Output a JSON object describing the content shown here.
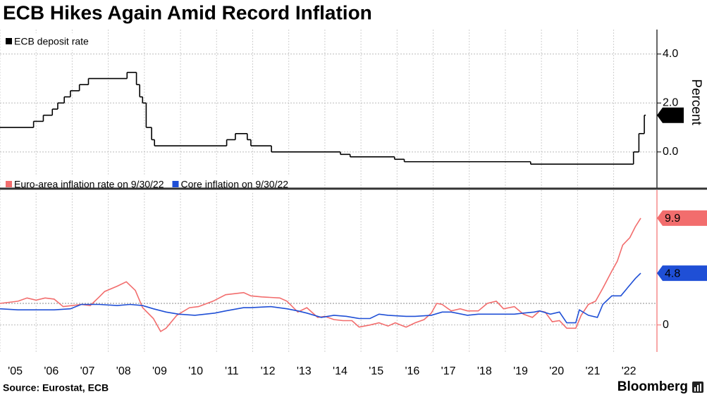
{
  "title": "ECB Hikes Again Amid Record Inflation",
  "source": "Source: Eurostat, ECB",
  "brand": "Bloomberg",
  "chart_data": [
    {
      "type": "line",
      "step": true,
      "y_label": "Percent",
      "xlim": [
        2005,
        2023.2
      ],
      "ylim": [
        -1.5,
        5
      ],
      "yticks": [
        {
          "value": 4,
          "label": "4.0"
        },
        {
          "value": 2,
          "label": "2.0"
        },
        {
          "value": 0,
          "label": "0.0"
        }
      ],
      "grid": true,
      "legend": "top-left",
      "series": [
        {
          "name": "ECB deposit rate",
          "color": "#000000",
          "x": [
            2005.0,
            2005.93,
            2006.2,
            2006.45,
            2006.6,
            2006.78,
            2006.95,
            2007.2,
            2007.45,
            2008.52,
            2008.78,
            2008.87,
            2008.95,
            2009.05,
            2009.2,
            2009.28,
            2011.28,
            2011.52,
            2011.85,
            2011.95,
            2012.52,
            2014.43,
            2014.7,
            2015.93,
            2016.2,
            2019.7,
            2022.55,
            2022.7,
            2022.85
          ],
          "values": [
            1.0,
            1.25,
            1.5,
            1.75,
            2.0,
            2.25,
            2.5,
            2.75,
            3.0,
            3.25,
            2.75,
            2.25,
            2.0,
            1.0,
            0.5,
            0.25,
            0.5,
            0.75,
            0.5,
            0.25,
            0.0,
            -0.1,
            -0.2,
            -0.3,
            -0.4,
            -0.5,
            0.0,
            0.75,
            1.5
          ]
        }
      ]
    },
    {
      "type": "line",
      "xlim": [
        2005,
        2023.2
      ],
      "ylim": [
        -2.5,
        12.5
      ],
      "yticks": [
        0
      ],
      "reference_line": 2,
      "grid": true,
      "legend": "top-left",
      "xticks": [
        {
          "value": 2005,
          "label": "'05"
        },
        {
          "value": 2006,
          "label": "'06"
        },
        {
          "value": 2007,
          "label": "'07"
        },
        {
          "value": 2008,
          "label": "'08"
        },
        {
          "value": 2009,
          "label": "'09"
        },
        {
          "value": 2010,
          "label": "'10"
        },
        {
          "value": 2011,
          "label": "'11"
        },
        {
          "value": 2012,
          "label": "'12"
        },
        {
          "value": 2013,
          "label": "'13"
        },
        {
          "value": 2014,
          "label": "'14"
        },
        {
          "value": 2015,
          "label": "'15"
        },
        {
          "value": 2016,
          "label": "'16"
        },
        {
          "value": 2017,
          "label": "'17"
        },
        {
          "value": 2018,
          "label": "'18"
        },
        {
          "value": 2019,
          "label": "'19"
        },
        {
          "value": 2020,
          "label": "'20"
        },
        {
          "value": 2021,
          "label": "'21"
        },
        {
          "value": 2022,
          "label": "'22"
        }
      ],
      "series": [
        {
          "name": "Euro-area inflation rate on 9/30/22",
          "color": "#f26d6d",
          "x": [
            2005.0,
            2005.25,
            2005.5,
            2005.75,
            2006.0,
            2006.25,
            2006.5,
            2006.75,
            2007.0,
            2007.25,
            2007.5,
            2007.75,
            2007.9,
            2008.25,
            2008.5,
            2008.75,
            2008.95,
            2009.25,
            2009.45,
            2009.6,
            2009.9,
            2010.25,
            2010.5,
            2010.9,
            2011.25,
            2011.75,
            2011.95,
            2012.25,
            2012.75,
            2012.95,
            2013.25,
            2013.5,
            2013.8,
            2014.0,
            2014.25,
            2014.5,
            2014.75,
            2014.95,
            2015.25,
            2015.5,
            2015.75,
            2015.95,
            2016.25,
            2016.5,
            2016.75,
            2016.95,
            2017.1,
            2017.25,
            2017.5,
            2017.75,
            2017.95,
            2018.25,
            2018.5,
            2018.75,
            2018.95,
            2019.25,
            2019.5,
            2019.75,
            2019.95,
            2020.1,
            2020.3,
            2020.5,
            2020.7,
            2020.95,
            2021.1,
            2021.3,
            2021.5,
            2021.7,
            2021.95,
            2022.1,
            2022.25,
            2022.45,
            2022.6,
            2022.75
          ],
          "values": [
            2.0,
            2.1,
            2.2,
            2.5,
            2.3,
            2.5,
            2.4,
            1.7,
            1.8,
            1.9,
            1.8,
            2.6,
            3.1,
            3.6,
            4.0,
            3.2,
            1.6,
            0.6,
            -0.6,
            -0.3,
            0.9,
            1.6,
            1.7,
            2.2,
            2.8,
            3.0,
            2.7,
            2.6,
            2.5,
            2.2,
            1.2,
            1.6,
            0.7,
            0.8,
            0.5,
            0.4,
            0.4,
            -0.2,
            0.0,
            0.2,
            -0.1,
            0.2,
            -0.2,
            0.2,
            0.5,
            1.1,
            2.0,
            1.9,
            1.3,
            1.5,
            1.3,
            1.3,
            2.0,
            2.2,
            1.5,
            1.7,
            1.0,
            0.7,
            1.3,
            1.2,
            0.3,
            0.4,
            -0.3,
            -0.3,
            0.9,
            1.9,
            2.2,
            3.4,
            5.0,
            5.9,
            7.4,
            8.1,
            9.1,
            9.9
          ]
        },
        {
          "name": "Core inflation on 9/30/22",
          "color": "#1f4fd6",
          "x": [
            2005.0,
            2005.5,
            2005.95,
            2006.5,
            2006.95,
            2007.25,
            2007.75,
            2008.25,
            2008.6,
            2008.95,
            2009.25,
            2009.6,
            2009.95,
            2010.4,
            2010.95,
            2011.25,
            2011.75,
            2011.95,
            2012.5,
            2012.95,
            2013.25,
            2013.5,
            2013.9,
            2014.25,
            2014.6,
            2014.95,
            2015.25,
            2015.5,
            2015.75,
            2016.25,
            2016.5,
            2016.95,
            2017.25,
            2017.5,
            2017.95,
            2018.25,
            2018.6,
            2018.95,
            2019.25,
            2019.5,
            2019.8,
            2019.95,
            2020.25,
            2020.5,
            2020.7,
            2020.95,
            2021.05,
            2021.3,
            2021.55,
            2021.7,
            2021.95,
            2022.2,
            2022.45,
            2022.6,
            2022.75
          ],
          "values": [
            1.5,
            1.4,
            1.4,
            1.4,
            1.5,
            1.9,
            1.9,
            1.8,
            1.9,
            1.8,
            1.5,
            1.2,
            1.0,
            0.9,
            1.1,
            1.3,
            1.6,
            1.6,
            1.7,
            1.5,
            1.3,
            1.1,
            0.7,
            0.9,
            0.8,
            0.6,
            0.6,
            1.0,
            0.9,
            0.8,
            0.8,
            0.9,
            1.2,
            1.2,
            0.9,
            1.0,
            1.0,
            1.0,
            1.0,
            1.1,
            1.2,
            1.3,
            1.0,
            1.2,
            0.2,
            0.2,
            1.4,
            0.9,
            0.7,
            1.9,
            2.7,
            2.7,
            3.7,
            4.3,
            4.8
          ]
        }
      ]
    }
  ]
}
